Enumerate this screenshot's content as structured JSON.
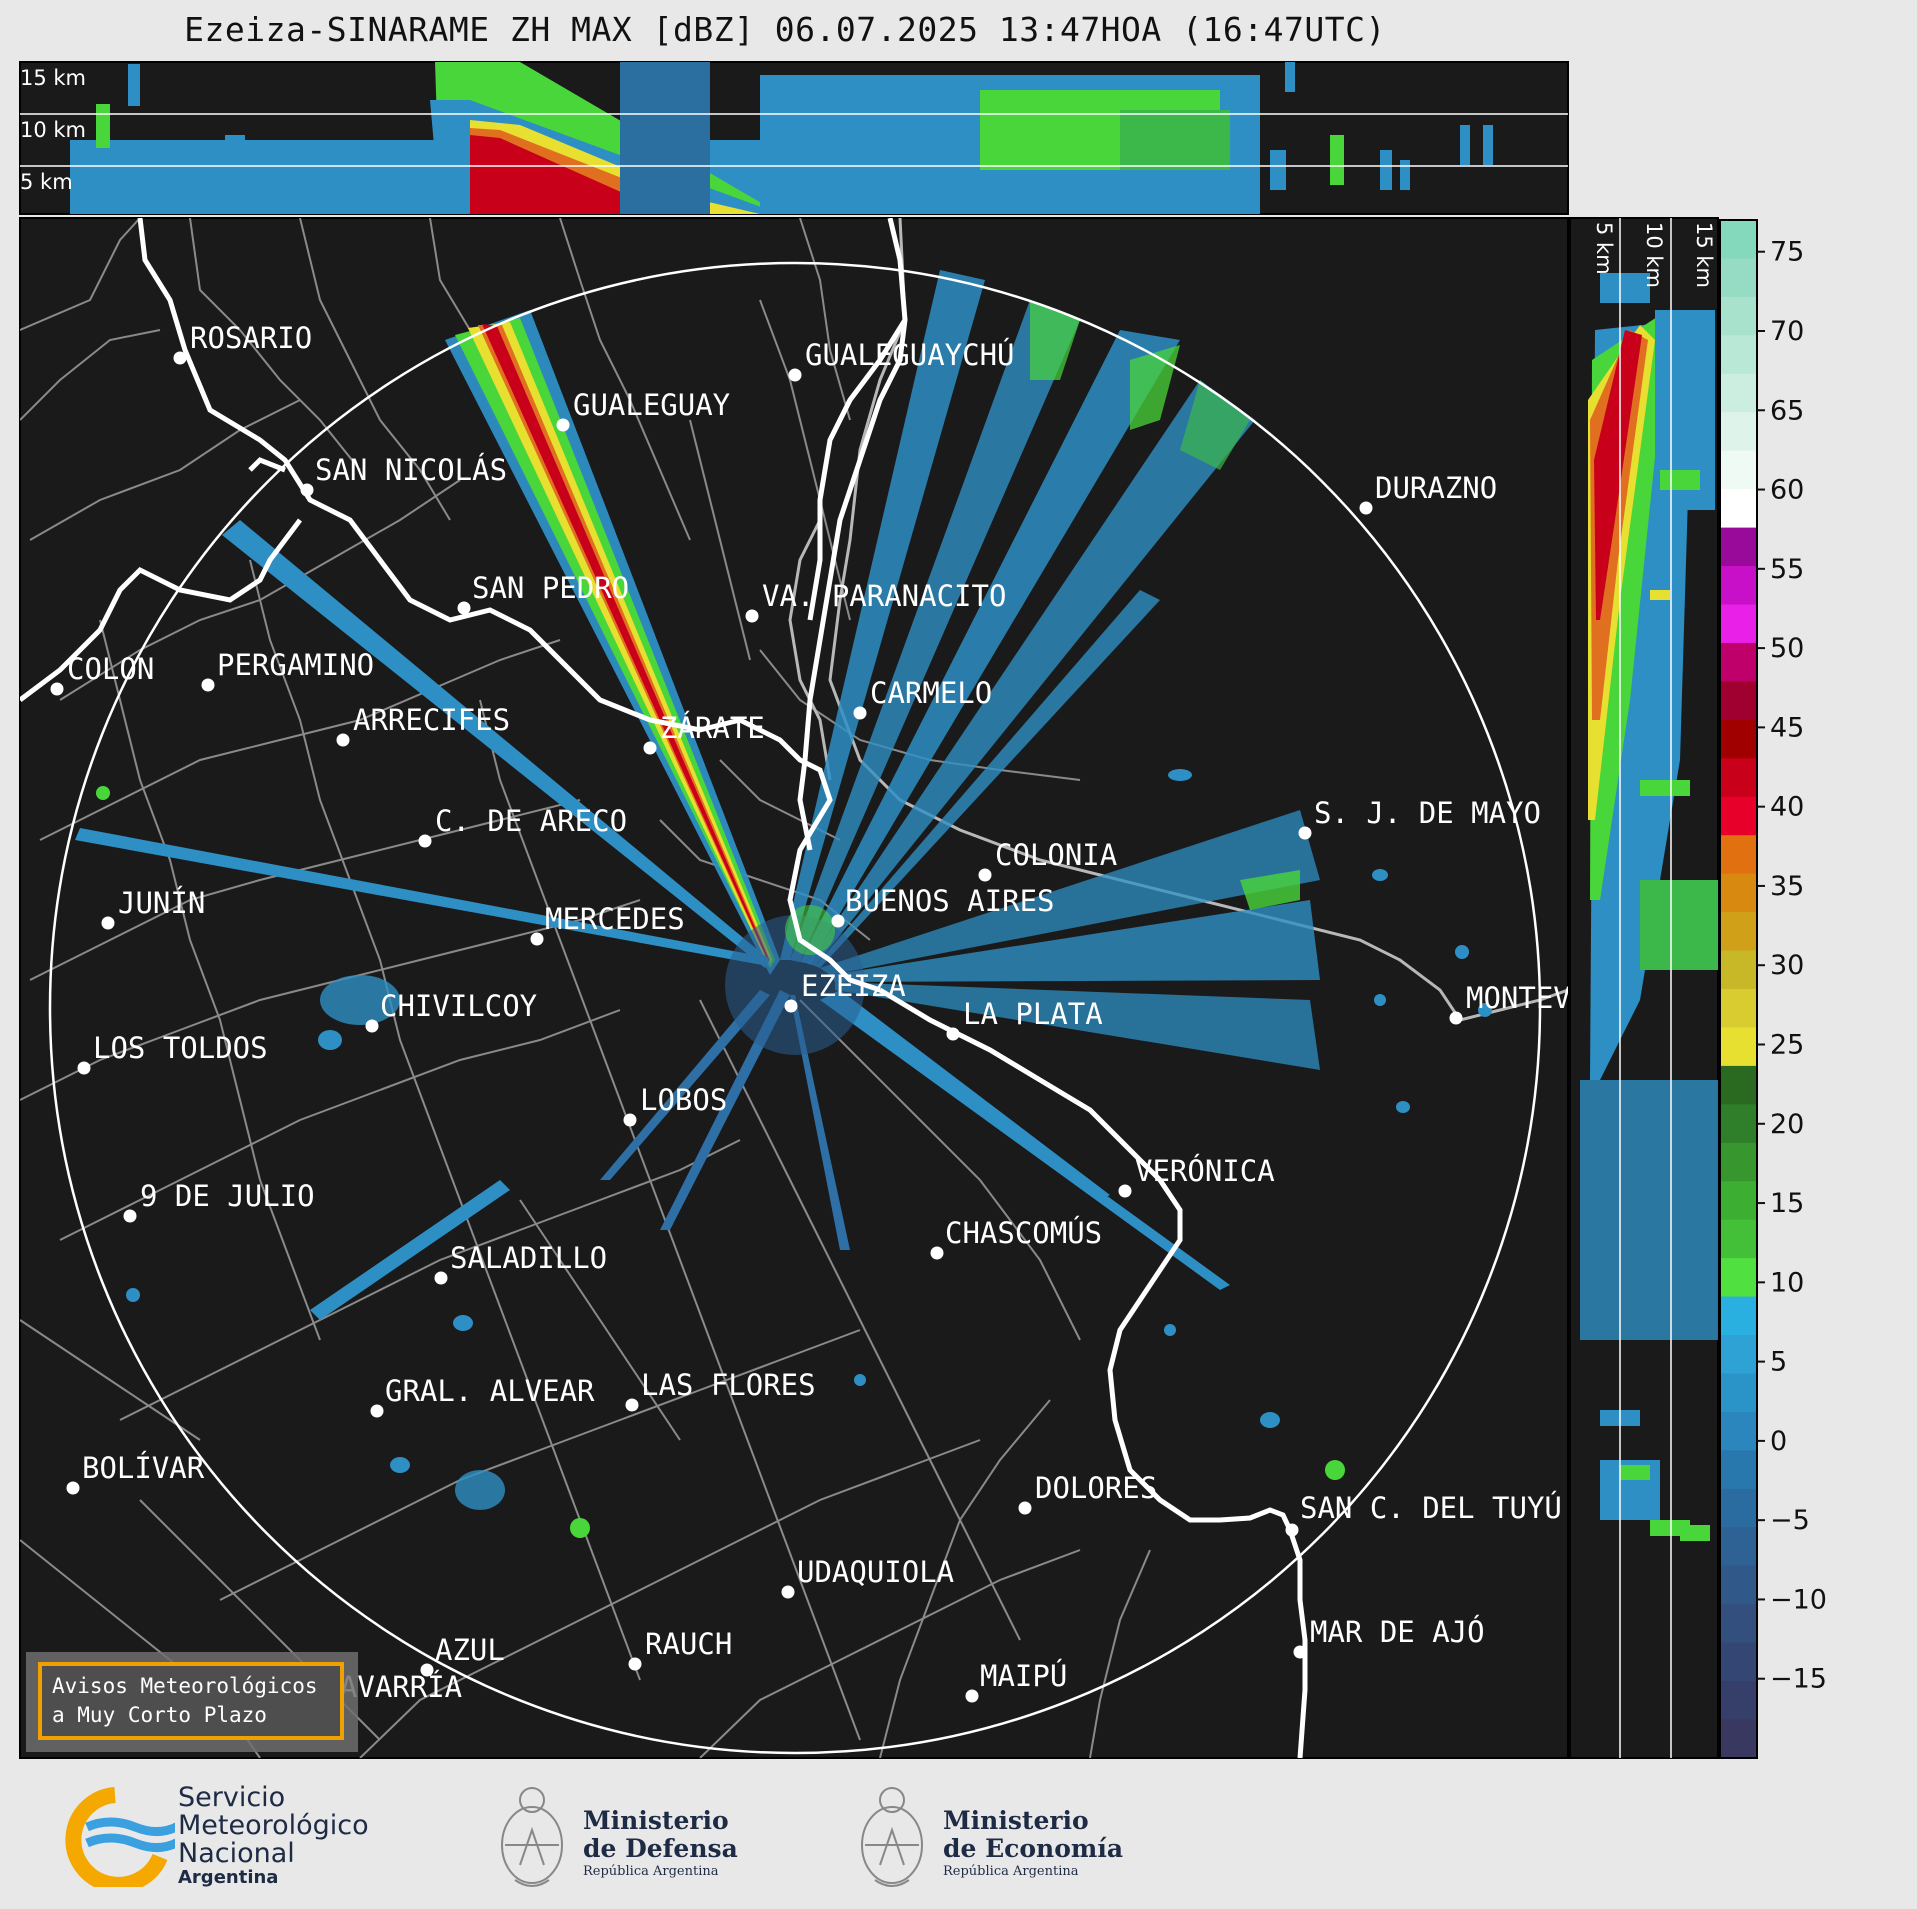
{
  "title": "Ezeiza-SINARAME ZH MAX [dBZ] 06.07.2025 13:47HOA (16:47UTC)",
  "top_panel_altitudes": [
    "15 km",
    "10 km",
    "5 km"
  ],
  "side_panel_altitudes": [
    "5 km",
    "10 km",
    "15 km"
  ],
  "colorbar": {
    "unit": "dBZ",
    "ticks": [
      "75",
      "70",
      "65",
      "60",
      "55",
      "50",
      "45",
      "40",
      "35",
      "30",
      "25",
      "20",
      "15",
      "10",
      "5",
      "0",
      "−5",
      "−10",
      "−15"
    ],
    "range": [
      -20,
      77
    ]
  },
  "cities": [
    {
      "name": "ROSARIO"
    },
    {
      "name": "GUALEGUAYCHÚ"
    },
    {
      "name": "GUALEGUAY"
    },
    {
      "name": "SAN NICOLÁS"
    },
    {
      "name": "DURAZNO"
    },
    {
      "name": "SAN PEDRO"
    },
    {
      "name": "VA. PARANACITO"
    },
    {
      "name": "COLON"
    },
    {
      "name": "PERGAMINO"
    },
    {
      "name": "CARMELO"
    },
    {
      "name": "ARRECIFES"
    },
    {
      "name": "ZÁRATE"
    },
    {
      "name": "C. DE ARECO"
    },
    {
      "name": "S. J. DE MAYO"
    },
    {
      "name": "COLONIA"
    },
    {
      "name": "JUNÍN"
    },
    {
      "name": "BUENOS AIRES"
    },
    {
      "name": "MERCEDES"
    },
    {
      "name": "MONTEV"
    },
    {
      "name": "EZEIZA"
    },
    {
      "name": "CHIVILCOY"
    },
    {
      "name": "LA PLATA"
    },
    {
      "name": "LOS TOLDOS"
    },
    {
      "name": "LOBOS"
    },
    {
      "name": "VERÓNICA"
    },
    {
      "name": "9 DE JULIO"
    },
    {
      "name": "CHASCOMÚS"
    },
    {
      "name": "SALADILLO"
    },
    {
      "name": "GRAL. ALVEAR"
    },
    {
      "name": "LAS FLORES"
    },
    {
      "name": "BOLÍVAR"
    },
    {
      "name": "DOLORES"
    },
    {
      "name": "SAN C. DEL TUYÚ"
    },
    {
      "name": "UDAQUIOLA"
    },
    {
      "name": "MAR DE AJÓ"
    },
    {
      "name": "AZUL"
    },
    {
      "name": "RAUCH"
    },
    {
      "name": "OLAVARRÍA"
    },
    {
      "name": "MAIPÚ"
    }
  ],
  "notice": {
    "line1": "Avisos Meteorológicos",
    "line2": "a Muy Corto Plazo"
  },
  "logos": {
    "smn": {
      "line1": "Servicio",
      "line2": "Meteorológico",
      "line3": "Nacional",
      "line4": "Argentina"
    },
    "defensa": {
      "line1": "Ministerio",
      "line2": "de Defensa",
      "line3": "República Argentina"
    },
    "economia": {
      "line1": "Ministerio",
      "line2": "de Economía",
      "line3": "República Argentina"
    }
  },
  "colors": {
    "map_bg": "#1a1a1a",
    "accent": "#f0a000"
  }
}
